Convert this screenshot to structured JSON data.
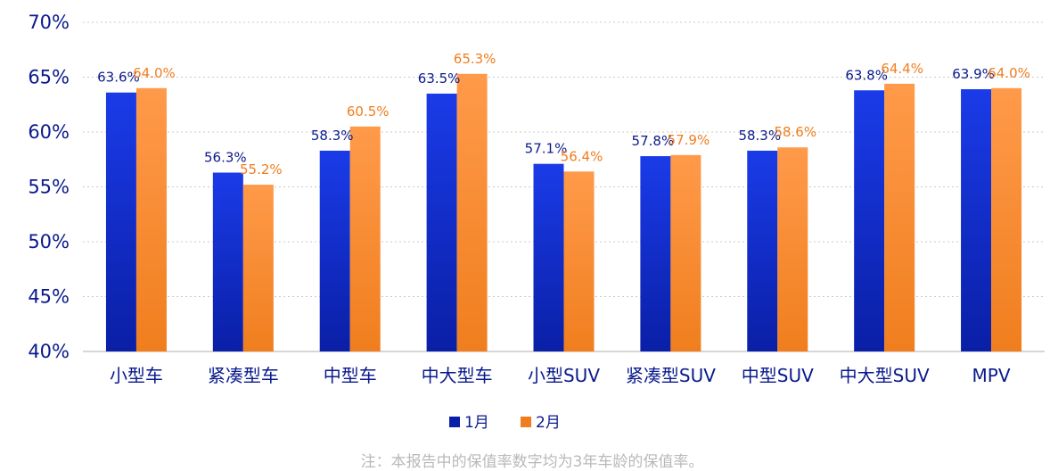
{
  "chart_data": {
    "type": "bar",
    "categories": [
      "小型车",
      "紧凑型车",
      "中型车",
      "中大型车",
      "小型SUV",
      "紧凑型SUV",
      "中型SUV",
      "中大型SUV",
      "MPV"
    ],
    "series": [
      {
        "name": "1月",
        "values": [
          63.6,
          56.3,
          58.3,
          63.5,
          57.1,
          57.8,
          58.3,
          63.8,
          63.9
        ],
        "labels": [
          "63.6%",
          "56.3%",
          "58.3%",
          "63.5%",
          "57.1%",
          "57.8%",
          "58.3%",
          "63.8%",
          "63.9%"
        ],
        "color_top": "#1a3be8",
        "color_bottom": "#0a1fa6",
        "label_color": "#0a1a8c"
      },
      {
        "name": "2月",
        "values": [
          64.0,
          55.2,
          60.5,
          65.3,
          56.4,
          57.9,
          58.6,
          64.4,
          64.0
        ],
        "labels": [
          "64.0%",
          "55.2%",
          "60.5%",
          "65.3%",
          "56.4%",
          "57.9%",
          "58.6%",
          "64.4%",
          "64.0%"
        ],
        "color_top": "#ff9a4a",
        "color_bottom": "#f07e1e",
        "label_color": "#f07e1e"
      }
    ],
    "ylim": [
      40,
      70
    ],
    "yticks": [
      40,
      45,
      50,
      55,
      60,
      65,
      70
    ],
    "ytick_labels": [
      "40%",
      "45%",
      "50%",
      "55%",
      "60%",
      "65%",
      "70%"
    ],
    "grid": true,
    "legend": "bottom-center",
    "xlabel": "",
    "ylabel": ""
  },
  "note": "注：本报告中的保值率数字均为3年车龄的保值率。"
}
